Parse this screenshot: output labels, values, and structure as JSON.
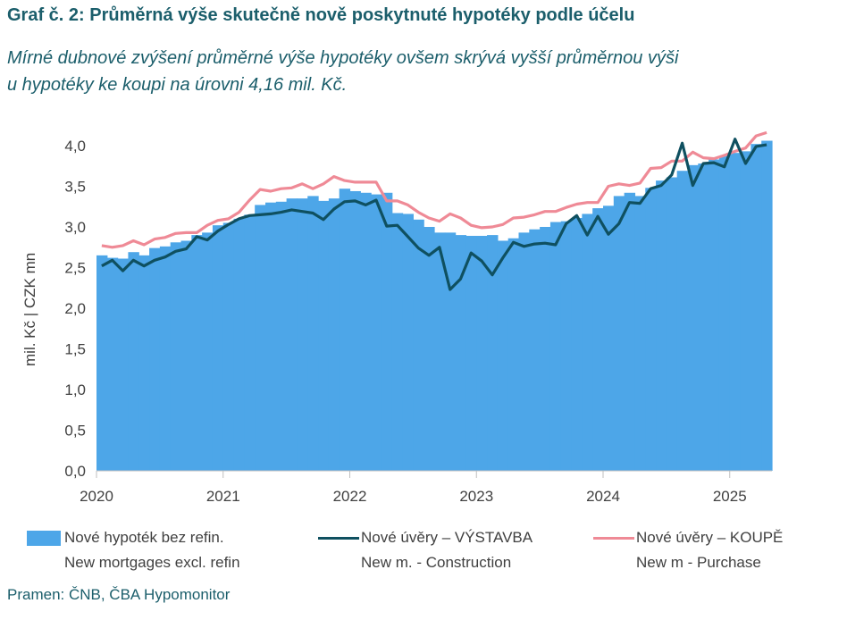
{
  "title": "Graf č. 2: Průměrná výše skutečně nově poskytnuté hypotéky podle účelu",
  "subtitle_line1": "Mírné dubnové zvýšení průměrné výše hypotéky ovšem skrývá vyšší průměrnou výši",
  "subtitle_line2": "u hypotéky ke koupi na úrovni 4,16 mil. Kč.",
  "source": "Pramen: ČNB, ČBA Hypomonitor",
  "chart_data": {
    "type": "bar",
    "ylabel": "mil. Kč  |  CZK mn",
    "ylim": [
      0,
      4.0
    ],
    "yticks": [
      "0,0",
      "0,5",
      "1,0",
      "1,5",
      "2,0",
      "2,5",
      "3,0",
      "3,5",
      "4,0"
    ],
    "xticks": [
      "2020",
      "2021",
      "2022",
      "2023",
      "2024",
      "2025"
    ],
    "x": [
      "2020-01",
      "2020-02",
      "2020-03",
      "2020-04",
      "2020-05",
      "2020-06",
      "2020-07",
      "2020-08",
      "2020-09",
      "2020-10",
      "2020-11",
      "2020-12",
      "2021-01",
      "2021-02",
      "2021-03",
      "2021-04",
      "2021-05",
      "2021-06",
      "2021-07",
      "2021-08",
      "2021-09",
      "2021-10",
      "2021-11",
      "2021-12",
      "2022-01",
      "2022-02",
      "2022-03",
      "2022-04",
      "2022-05",
      "2022-06",
      "2022-07",
      "2022-08",
      "2022-09",
      "2022-10",
      "2022-11",
      "2022-12",
      "2023-01",
      "2023-02",
      "2023-03",
      "2023-04",
      "2023-05",
      "2023-06",
      "2023-07",
      "2023-08",
      "2023-09",
      "2023-10",
      "2023-11",
      "2023-12",
      "2024-01",
      "2024-02",
      "2024-03",
      "2024-04",
      "2024-05",
      "2024-06",
      "2024-07",
      "2024-08",
      "2024-09",
      "2024-10",
      "2024-11",
      "2024-12",
      "2025-01",
      "2025-02",
      "2025-03",
      "2025-04"
    ],
    "series": [
      {
        "name": "Nové hypoték bez refin.",
        "name_en": "New mortgages excl. refin",
        "style": "area",
        "color": "#4da6e8",
        "values": [
          2.65,
          2.62,
          2.61,
          2.69,
          2.65,
          2.74,
          2.76,
          2.81,
          2.83,
          2.9,
          2.93,
          3.02,
          3.05,
          3.1,
          3.15,
          3.27,
          3.3,
          3.31,
          3.35,
          3.35,
          3.38,
          3.32,
          3.35,
          3.47,
          3.44,
          3.42,
          3.4,
          3.42,
          3.17,
          3.16,
          3.09,
          3.0,
          2.93,
          2.93,
          2.9,
          2.89,
          2.89,
          2.9,
          2.83,
          2.86,
          2.93,
          2.97,
          3.0,
          3.06,
          3.07,
          3.11,
          3.16,
          3.23,
          3.26,
          3.38,
          3.42,
          3.38,
          3.48,
          3.57,
          3.61,
          3.69,
          3.76,
          3.78,
          3.83,
          3.87,
          3.91,
          3.93,
          4.02,
          4.06
        ]
      },
      {
        "name": "Nové úvěry – VÝSTAVBA",
        "name_en": "New m. - Construction",
        "style": "line",
        "color": "#0f5060",
        "values": [
          2.52,
          2.59,
          2.46,
          2.59,
          2.52,
          2.59,
          2.63,
          2.7,
          2.73,
          2.88,
          2.84,
          2.95,
          3.03,
          3.1,
          3.14,
          3.15,
          3.16,
          3.18,
          3.21,
          3.19,
          3.17,
          3.09,
          3.22,
          3.31,
          3.32,
          3.27,
          3.33,
          3.01,
          3.02,
          2.88,
          2.74,
          2.65,
          2.75,
          2.23,
          2.36,
          2.68,
          2.58,
          2.41,
          2.62,
          2.81,
          2.76,
          2.79,
          2.8,
          2.78,
          3.04,
          3.14,
          2.9,
          3.13,
          2.91,
          3.04,
          3.3,
          3.29,
          3.47,
          3.51,
          3.64,
          4.03,
          3.51,
          3.78,
          3.79,
          3.74,
          4.08,
          3.78,
          3.99,
          4.01
        ]
      },
      {
        "name": "Nové úvěry – KOUPĚ",
        "name_en": "New m - Purchase",
        "style": "line",
        "color": "#ef8a96",
        "values": [
          2.77,
          2.75,
          2.77,
          2.83,
          2.78,
          2.85,
          2.87,
          2.92,
          2.93,
          2.93,
          3.02,
          3.08,
          3.1,
          3.18,
          3.33,
          3.46,
          3.44,
          3.47,
          3.48,
          3.53,
          3.47,
          3.53,
          3.62,
          3.57,
          3.55,
          3.55,
          3.55,
          3.32,
          3.32,
          3.27,
          3.18,
          3.11,
          3.07,
          3.16,
          3.11,
          3.02,
          2.99,
          3.0,
          3.03,
          3.11,
          3.12,
          3.15,
          3.19,
          3.19,
          3.24,
          3.28,
          3.3,
          3.3,
          3.5,
          3.53,
          3.51,
          3.54,
          3.72,
          3.73,
          3.81,
          3.81,
          3.92,
          3.85,
          3.84,
          3.88,
          3.93,
          3.97,
          4.12,
          4.16
        ]
      }
    ]
  }
}
